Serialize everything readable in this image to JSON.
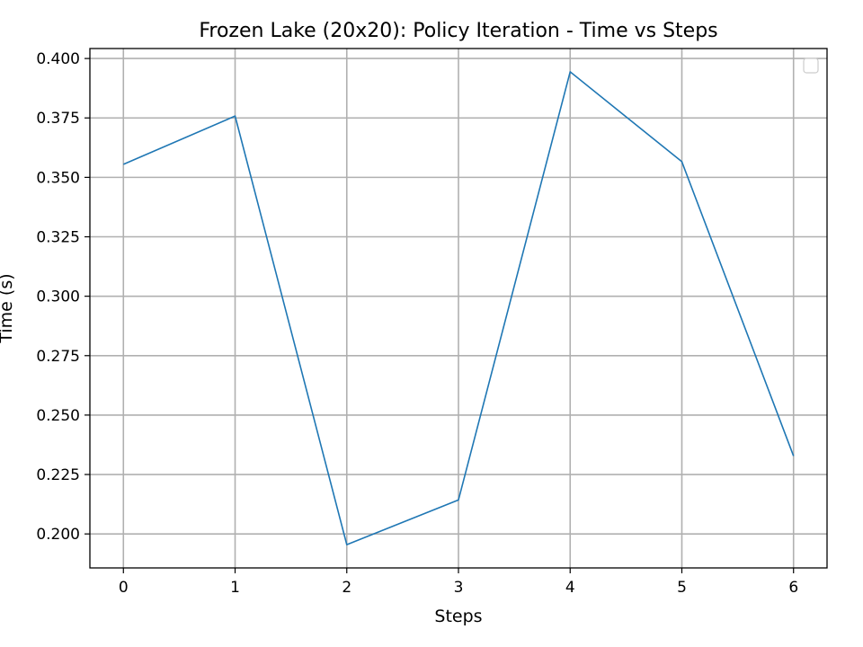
{
  "chart_data": {
    "type": "line",
    "title": "Frozen Lake (20x20): Policy Iteration - Time vs Steps",
    "xlabel": "Steps",
    "ylabel": "Time (s)",
    "x": [
      0,
      1,
      2,
      3,
      4,
      5,
      6
    ],
    "series": [
      {
        "values": [
          0.3555,
          0.3758,
          0.1955,
          0.2143,
          0.3944,
          0.3566,
          0.2328
        ],
        "color": "#1f77b4"
      }
    ],
    "xticks": [
      "0",
      "1",
      "2",
      "3",
      "4",
      "5",
      "6"
    ],
    "yticks": [
      "0.200",
      "0.225",
      "0.250",
      "0.275",
      "0.300",
      "0.325",
      "0.350",
      "0.375",
      "0.400"
    ],
    "xlim": [
      -0.3,
      6.3
    ],
    "ylim": [
      0.1857,
      0.4042
    ],
    "grid": true,
    "legend": "top-right (empty)"
  }
}
